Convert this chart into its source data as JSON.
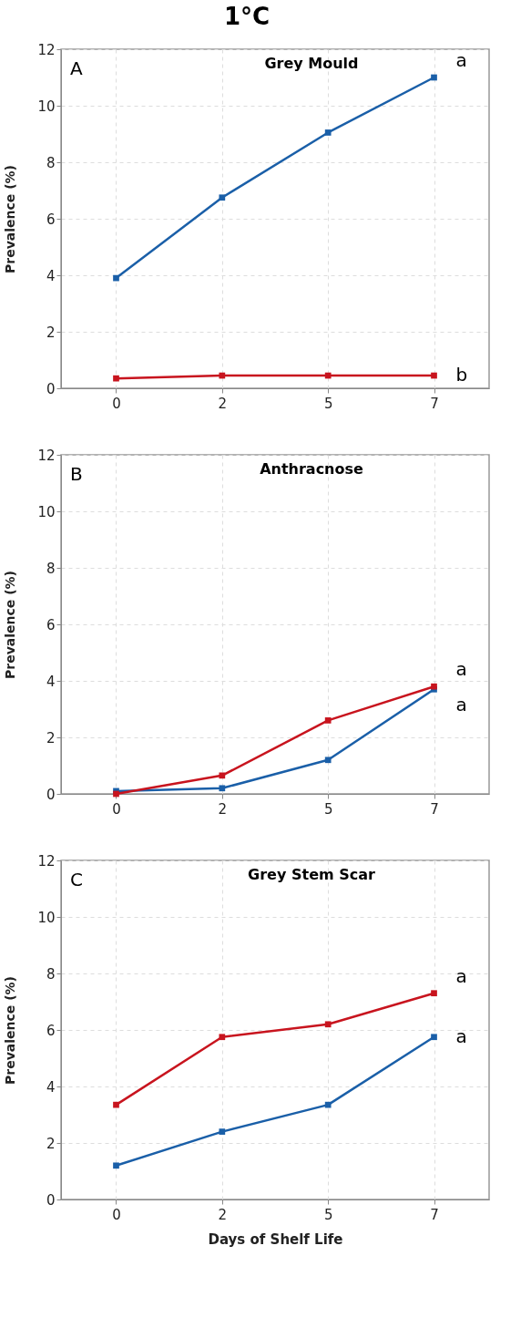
{
  "chart_data": [
    {
      "type": "line",
      "title": "Grey Mould",
      "ylabel": "Prevalence (%)",
      "categories": [
        "0",
        "2",
        "5",
        "7"
      ],
      "ylim": [
        0,
        12
      ],
      "yticks": [
        0,
        2,
        4,
        6,
        8,
        10,
        12
      ],
      "grid": true,
      "marker": "square",
      "line_style": "solid",
      "series": [
        {
          "color": "#1a5fa8",
          "values": [
            3.9,
            6.75,
            9.05,
            11.0
          ]
        },
        {
          "color": "#c8141e",
          "values": [
            0.35,
            0.45,
            0.45,
            0.45
          ]
        }
      ],
      "annotations": [
        "1°C",
        "A",
        {
          "text": "a",
          "x": "7",
          "y": 11.0
        },
        {
          "text": "b",
          "x": "7",
          "y": 0.45
        }
      ]
    },
    {
      "type": "line",
      "title": "Anthracnose",
      "ylabel": "Prevalence (%)",
      "categories": [
        "0",
        "2",
        "5",
        "7"
      ],
      "ylim": [
        0,
        12
      ],
      "yticks": [
        0,
        2,
        4,
        6,
        8,
        10,
        12
      ],
      "grid": true,
      "marker": "square",
      "line_style": "solid",
      "series": [
        {
          "color": "#1a5fa8",
          "values": [
            0.1,
            0.2,
            1.2,
            3.7
          ]
        },
        {
          "color": "#c8141e",
          "values": [
            0.0,
            0.65,
            2.6,
            3.8
          ]
        }
      ],
      "annotations": [
        "B",
        {
          "text": "a",
          "x": "7",
          "y": 3.8
        },
        {
          "text": "a",
          "x": "7",
          "y": 3.7
        }
      ]
    },
    {
      "type": "line",
      "title": "Grey Stem Scar",
      "xlabel": "Days of Shelf Life",
      "ylabel": "Prevalence (%)",
      "categories": [
        "0",
        "2",
        "5",
        "7"
      ],
      "ylim": [
        0,
        12
      ],
      "yticks": [
        0,
        2,
        4,
        6,
        8,
        10,
        12
      ],
      "grid": true,
      "marker": "square",
      "line_style": "solid",
      "series": [
        {
          "color": "#1a5fa8",
          "values": [
            1.2,
            2.4,
            3.35,
            5.75
          ]
        },
        {
          "color": "#c8141e",
          "values": [
            3.35,
            5.75,
            6.2,
            7.3
          ]
        }
      ],
      "annotations": [
        "C",
        {
          "text": "a",
          "x": "7",
          "y": 7.3
        },
        {
          "text": "a",
          "x": "7",
          "y": 5.75
        }
      ]
    }
  ]
}
